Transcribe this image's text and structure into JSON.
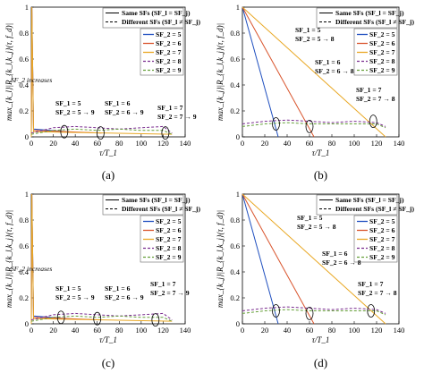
{
  "chart_data": [
    {
      "panel": "(a)",
      "type": "line",
      "ylabel": "max_{k_l}|R_{k_l,k_j}(τ, f_d)|",
      "xlabel": "τ/T_1",
      "xlim": [
        0,
        140
      ],
      "ylim": [
        0,
        1
      ],
      "xticks": [
        "0",
        "20",
        "40",
        "60",
        "80",
        "100",
        "120",
        "140"
      ],
      "yticks": [
        "0",
        "0.2",
        "0.4",
        "0.6",
        "0.8",
        "1"
      ],
      "legend_top": [
        "Same SFs (SF_l = SF_j)",
        "Different SFs (SF_l ≠ SF_j)"
      ],
      "legend_right": [
        "SF_2 = 5",
        "SF_2 = 6",
        "SF_2 = 7",
        "SF_2 = 8",
        "SF_2 = 9"
      ],
      "annotations": [
        "SF_2 increases",
        "SF_1 = 5",
        "SF_2 = 5 → 9",
        "SF_1 = 6",
        "SF_2 = 6 → 9",
        "SF_1 = 7",
        "SF_2 = 7 → 9"
      ],
      "series": [
        {
          "name": "SF_2 = 5",
          "style": "solid",
          "color": "#1f4fbf",
          "x": [
            0,
            0.5,
            2,
            32
          ],
          "y": [
            0,
            1,
            0.06,
            0.04
          ]
        },
        {
          "name": "SF_2 = 6",
          "style": "solid",
          "color": "#d9542c",
          "x": [
            0,
            0.5,
            2,
            64
          ],
          "y": [
            0,
            1,
            0.05,
            0.03
          ]
        },
        {
          "name": "SF_2 = 7",
          "style": "solid",
          "color": "#e9a825",
          "x": [
            0,
            0.5,
            2,
            128
          ],
          "y": [
            0,
            1,
            0.04,
            0.02
          ]
        },
        {
          "name": "SF_2 = 8",
          "style": "dashed",
          "color": "#7a2d8f",
          "x": [
            0,
            20,
            40,
            60,
            80,
            100,
            120,
            128
          ],
          "y": [
            0.03,
            0.07,
            0.08,
            0.07,
            0.06,
            0.07,
            0.08,
            0.03
          ]
        },
        {
          "name": "SF_2 = 9",
          "style": "dashed",
          "color": "#66a03a",
          "x": [
            0,
            20,
            40,
            60,
            80,
            100,
            120,
            128
          ],
          "y": [
            0.02,
            0.05,
            0.06,
            0.05,
            0.06,
            0.05,
            0.05,
            0.02
          ]
        }
      ]
    },
    {
      "panel": "(b)",
      "type": "line",
      "ylabel": "max_{k_j}|R_{k_l,k_j}(τ, f_d)|",
      "xlabel": "τ/T_1",
      "xlim": [
        0,
        140
      ],
      "ylim": [
        0,
        1
      ],
      "xticks": [
        "0",
        "20",
        "40",
        "60",
        "80",
        "100",
        "120",
        "140"
      ],
      "yticks": [
        "0",
        "0.2",
        "0.4",
        "0.6",
        "0.8",
        "1"
      ],
      "legend_top": [
        "Same SFs (SF_l = SF_j)",
        "Different SFs (SF_l ≠ SF_j)"
      ],
      "legend_right": [
        "SF_2 = 5",
        "SF_2 = 6",
        "SF_2 = 7",
        "SF_2 = 8",
        "SF_2 = 9"
      ],
      "annotations": [
        "SF_1 = 5",
        "SF_2 = 5 → 8",
        "SF_1 = 6",
        "SF_2 = 6 → 8",
        "SF_1 = 7",
        "SF_2 = 7 → 8"
      ],
      "series": [
        {
          "name": "SF_2 = 5",
          "style": "solid",
          "color": "#1f4fbf",
          "x": [
            0,
            32
          ],
          "y": [
            1,
            0
          ]
        },
        {
          "name": "SF_2 = 6",
          "style": "solid",
          "color": "#d9542c",
          "x": [
            0,
            64
          ],
          "y": [
            1,
            0
          ]
        },
        {
          "name": "SF_2 = 7",
          "style": "solid",
          "color": "#e9a825",
          "x": [
            0,
            128
          ],
          "y": [
            1,
            0
          ]
        },
        {
          "name": "SF_2 = 8",
          "style": "dashed",
          "color": "#7a2d8f",
          "x": [
            0,
            20,
            40,
            60,
            80,
            100,
            120,
            128
          ],
          "y": [
            0.1,
            0.12,
            0.13,
            0.12,
            0.11,
            0.12,
            0.11,
            0.08
          ]
        },
        {
          "name": "SF_2 = 9",
          "style": "dashed",
          "color": "#66a03a",
          "x": [
            0,
            20,
            40,
            60,
            80,
            100,
            120,
            128
          ],
          "y": [
            0.08,
            0.1,
            0.11,
            0.1,
            0.1,
            0.1,
            0.1,
            0.07
          ]
        }
      ]
    },
    {
      "panel": "(c)",
      "type": "line",
      "ylabel": "max_{k_l}|R_{k_l,k_j}(τ, f_d)|",
      "xlabel": "τ/T_1",
      "xlim": [
        0,
        140
      ],
      "ylim": [
        0,
        1
      ],
      "xticks": [
        "0",
        "20",
        "40",
        "60",
        "80",
        "100",
        "120",
        "140"
      ],
      "yticks": [
        "0",
        "0.2",
        "0.4",
        "0.6",
        "0.8",
        "1"
      ],
      "legend_top": [
        "Same SFs (SF_l = SF_j)",
        "Different SFs (SF_l ≠ SF_j)"
      ],
      "legend_right": [
        "SF_2 = 5",
        "SF_2 = 6",
        "SF_2 = 7",
        "SF_2 = 8",
        "SF_2 = 9"
      ],
      "annotations": [
        "SF_2 increases",
        "SF_1 = 5",
        "SF_2 = 5 → 9",
        "SF_1 = 6",
        "SF_2 = 6 → 9",
        "SF_1 = 7",
        "SF_2 = 7 → 9"
      ],
      "series": [
        {
          "name": "SF_2 = 5",
          "style": "solid",
          "color": "#1f4fbf",
          "x": [
            0,
            0.5,
            2,
            32
          ],
          "y": [
            0,
            1,
            0.06,
            0.04
          ]
        },
        {
          "name": "SF_2 = 6",
          "style": "solid",
          "color": "#d9542c",
          "x": [
            0,
            0.5,
            2,
            64
          ],
          "y": [
            0,
            1,
            0.05,
            0.03
          ]
        },
        {
          "name": "SF_2 = 7",
          "style": "solid",
          "color": "#e9a825",
          "x": [
            0,
            0.5,
            2,
            128
          ],
          "y": [
            0,
            1,
            0.04,
            0.02
          ]
        },
        {
          "name": "SF_2 = 8",
          "style": "dashed",
          "color": "#7a2d8f",
          "x": [
            0,
            20,
            40,
            60,
            80,
            100,
            120,
            128
          ],
          "y": [
            0.03,
            0.07,
            0.08,
            0.07,
            0.06,
            0.07,
            0.08,
            0.03
          ]
        },
        {
          "name": "SF_2 = 9",
          "style": "dashed",
          "color": "#66a03a",
          "x": [
            0,
            20,
            40,
            60,
            80,
            100,
            120,
            128
          ],
          "y": [
            0.02,
            0.05,
            0.06,
            0.05,
            0.06,
            0.05,
            0.05,
            0.02
          ]
        }
      ]
    },
    {
      "panel": "(d)",
      "type": "line",
      "ylabel": "max_{k_j}|R_{k_l,k_j}(τ, f_d)|",
      "xlabel": "τ/T_1",
      "xlim": [
        0,
        140
      ],
      "ylim": [
        0,
        1
      ],
      "xticks": [
        "0",
        "20",
        "40",
        "60",
        "80",
        "100",
        "120",
        "140"
      ],
      "yticks": [
        "0",
        "0.2",
        "0.4",
        "0.6",
        "0.8",
        "1"
      ],
      "legend_top": [
        "Same SFs (SF_l = SF_j)",
        "Different SFs (SF_l ≠ SF_j)"
      ],
      "legend_right": [
        "SF_2 = 5",
        "SF_2 = 6",
        "SF_2 = 7",
        "SF_2 = 8",
        "SF_2 = 9"
      ],
      "annotations": [
        "SF_1 = 5",
        "SF_2 = 5 → 8",
        "SF_1 = 6",
        "SF_2 = 6 → 8",
        "SF_1 = 7",
        "SF_2 = 7 → 8"
      ],
      "series": [
        {
          "name": "SF_2 = 5",
          "style": "solid",
          "color": "#1f4fbf",
          "x": [
            0,
            32
          ],
          "y": [
            1,
            0
          ]
        },
        {
          "name": "SF_2 = 6",
          "style": "solid",
          "color": "#d9542c",
          "x": [
            0,
            64
          ],
          "y": [
            1,
            0
          ]
        },
        {
          "name": "SF_2 = 7",
          "style": "solid",
          "color": "#e9a825",
          "x": [
            0,
            128
          ],
          "y": [
            1,
            0
          ]
        },
        {
          "name": "SF_2 = 8",
          "style": "dashed",
          "color": "#7a2d8f",
          "x": [
            0,
            20,
            40,
            60,
            80,
            100,
            120,
            128
          ],
          "y": [
            0.1,
            0.12,
            0.13,
            0.12,
            0.11,
            0.12,
            0.11,
            0.08
          ]
        },
        {
          "name": "SF_2 = 9",
          "style": "dashed",
          "color": "#66a03a",
          "x": [
            0,
            20,
            40,
            60,
            80,
            100,
            120,
            128
          ],
          "y": [
            0.08,
            0.1,
            0.11,
            0.1,
            0.1,
            0.1,
            0.1,
            0.07
          ]
        }
      ]
    }
  ]
}
